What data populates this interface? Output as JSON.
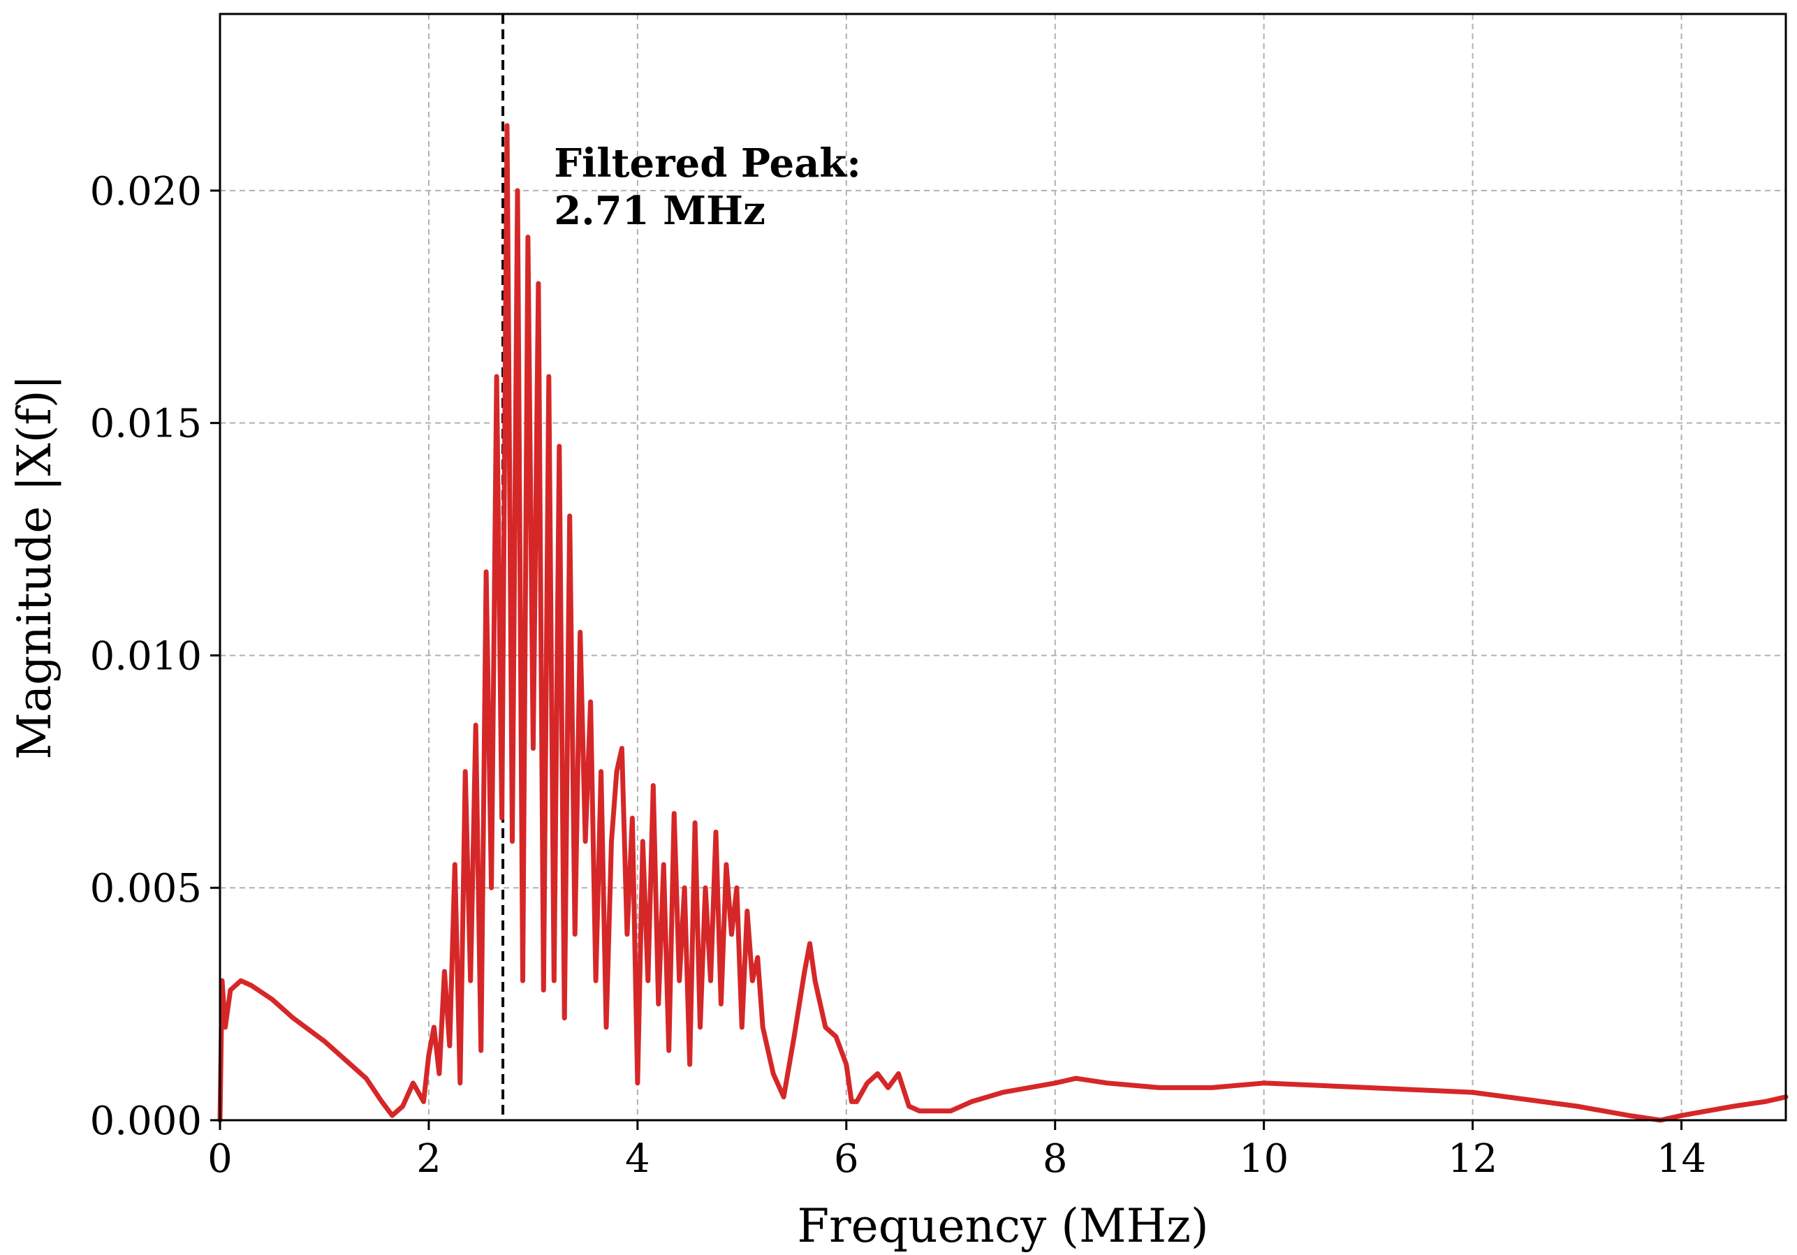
{
  "chart_data": {
    "type": "line",
    "title": "",
    "xlabel": "Frequency (MHz)",
    "ylabel": "Magnitude |X(f)|",
    "xlim": [
      0,
      15
    ],
    "ylim": [
      0,
      0.0238
    ],
    "xticks": [
      0,
      2,
      4,
      6,
      8,
      10,
      12,
      14
    ],
    "xtick_labels": [
      "0",
      "2",
      "4",
      "6",
      "8",
      "10",
      "12",
      "14"
    ],
    "yticks": [
      0.0,
      0.005,
      0.01,
      0.015,
      0.02
    ],
    "ytick_labels": [
      "0.000",
      "0.005",
      "0.010",
      "0.015",
      "0.020"
    ],
    "grid": true,
    "grid_style": "dashed",
    "legend": "none",
    "series": [
      {
        "color": "#d62728",
        "x": [
          0.0,
          0.02,
          0.05,
          0.1,
          0.2,
          0.3,
          0.5,
          0.7,
          1.0,
          1.2,
          1.4,
          1.55,
          1.65,
          1.75,
          1.85,
          1.95,
          2.0,
          2.05,
          2.1,
          2.15,
          2.2,
          2.25,
          2.3,
          2.35,
          2.4,
          2.45,
          2.5,
          2.55,
          2.6,
          2.65,
          2.7,
          2.75,
          2.8,
          2.85,
          2.9,
          2.95,
          3.0,
          3.05,
          3.1,
          3.15,
          3.2,
          3.25,
          3.3,
          3.35,
          3.4,
          3.45,
          3.5,
          3.55,
          3.6,
          3.65,
          3.7,
          3.75,
          3.8,
          3.85,
          3.9,
          3.95,
          4.0,
          4.05,
          4.1,
          4.15,
          4.2,
          4.25,
          4.3,
          4.35,
          4.4,
          4.45,
          4.5,
          4.55,
          4.6,
          4.65,
          4.7,
          4.75,
          4.8,
          4.85,
          4.9,
          4.95,
          5.0,
          5.05,
          5.1,
          5.15,
          5.2,
          5.3,
          5.4,
          5.5,
          5.6,
          5.65,
          5.7,
          5.8,
          5.9,
          6.0,
          6.05,
          6.1,
          6.2,
          6.3,
          6.4,
          6.5,
          6.6,
          6.7,
          6.8,
          7.0,
          7.2,
          7.5,
          8.0,
          8.2,
          8.5,
          9.0,
          9.5,
          10.0,
          11.0,
          12.0,
          13.0,
          13.5,
          13.8,
          14.0,
          14.5,
          14.8,
          15.0
        ],
        "y": [
          0.0,
          0.003,
          0.002,
          0.0028,
          0.003,
          0.0029,
          0.0026,
          0.0022,
          0.0017,
          0.0013,
          0.0009,
          0.0004,
          0.0001,
          0.0003,
          0.0008,
          0.0004,
          0.0014,
          0.002,
          0.001,
          0.0032,
          0.0016,
          0.0055,
          0.0008,
          0.0075,
          0.003,
          0.0085,
          0.0015,
          0.0118,
          0.005,
          0.016,
          0.0065,
          0.0214,
          0.006,
          0.02,
          0.003,
          0.019,
          0.008,
          0.018,
          0.0028,
          0.016,
          0.003,
          0.0145,
          0.0022,
          0.013,
          0.004,
          0.0105,
          0.006,
          0.009,
          0.003,
          0.0075,
          0.002,
          0.006,
          0.0075,
          0.008,
          0.004,
          0.0065,
          0.0008,
          0.006,
          0.003,
          0.0072,
          0.0025,
          0.0055,
          0.0015,
          0.0066,
          0.003,
          0.005,
          0.0012,
          0.0064,
          0.002,
          0.005,
          0.003,
          0.0062,
          0.0025,
          0.0055,
          0.004,
          0.005,
          0.002,
          0.0045,
          0.003,
          0.0035,
          0.002,
          0.001,
          0.0005,
          0.0018,
          0.0032,
          0.0038,
          0.003,
          0.002,
          0.0018,
          0.0012,
          0.0004,
          0.0004,
          0.0008,
          0.001,
          0.0007,
          0.001,
          0.0003,
          0.0002,
          0.0002,
          0.0002,
          0.0004,
          0.0006,
          0.0008,
          0.0009,
          0.0008,
          0.0007,
          0.0007,
          0.0008,
          0.0007,
          0.0006,
          0.0003,
          0.0001,
          0.0,
          0.0001,
          0.0003,
          0.0004,
          0.0005
        ]
      }
    ],
    "marker_line": {
      "x": 2.71,
      "style": "dashed",
      "color": "#000000"
    },
    "annotations": [
      {
        "text_line1": "Filtered Peak:",
        "text_line2": "2.71 MHz",
        "x": 3.2,
        "y": 0.0203
      }
    ]
  }
}
